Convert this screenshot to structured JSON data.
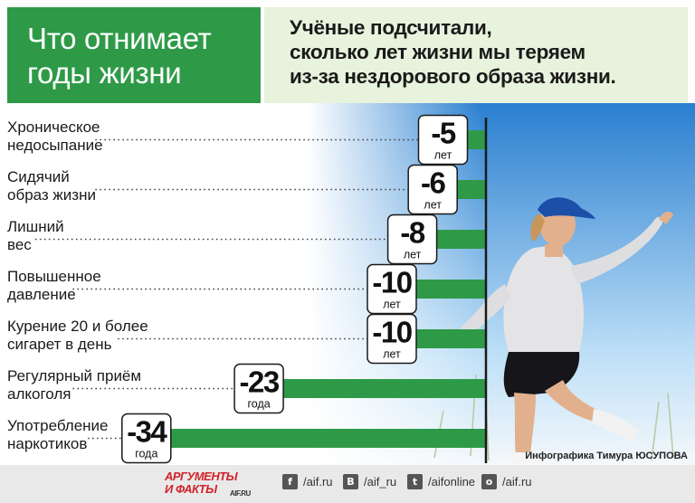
{
  "header": {
    "title_line1": "Что отнимает",
    "title_line2": "годы жизни",
    "subtitle_line1": "Учёные подсчитали,",
    "subtitle_line2": "сколько лет жизни мы теряем",
    "subtitle_line3": "из-за нездорового образа жизни."
  },
  "colors": {
    "bar": "#2e9a48",
    "title_bg": "#2e9a48",
    "subtitle_bg": "#e7f3dc",
    "label_box": "#ffffff",
    "axis": "#1a1a1a"
  },
  "chart_data": {
    "type": "bar",
    "orientation": "horizontal",
    "categories": [
      [
        "Хроническое",
        "недосыпание"
      ],
      [
        "Сидячий",
        "образ жизни"
      ],
      [
        "Лишний",
        "вес"
      ],
      [
        "Повышенное",
        "давление"
      ],
      [
        "Курение 20 и более",
        "сигарет в день"
      ],
      [
        "Регулярный приём",
        "алкоголя"
      ],
      [
        "Употребление",
        "наркотиков"
      ]
    ],
    "values": [
      -5,
      -6,
      -8,
      -10,
      -10,
      -23,
      -34
    ],
    "value_labels": [
      "-5",
      "-6",
      "-8",
      "-10",
      "-10",
      "-23",
      "-34"
    ],
    "unit_labels": [
      "лет",
      "лет",
      "лет",
      "лет",
      "лет",
      "года",
      "года"
    ]
  },
  "credit": "Инфографика Тимура ЮСУПОВА",
  "footer": {
    "logo_line1": "АРГУМЕНТЫ",
    "logo_line2": "И ФАКТЫ",
    "logo_domain": "AIF.RU",
    "social": [
      {
        "icon": "facebook-icon",
        "glyph": "f",
        "text": "/aif.ru"
      },
      {
        "icon": "vk-icon",
        "glyph": "B",
        "text": "/aif_ru"
      },
      {
        "icon": "twitter-icon",
        "glyph": "t",
        "text": "/aifonline"
      },
      {
        "icon": "odnoklassniki-icon",
        "glyph": "o",
        "text": "/aif.ru"
      }
    ]
  }
}
